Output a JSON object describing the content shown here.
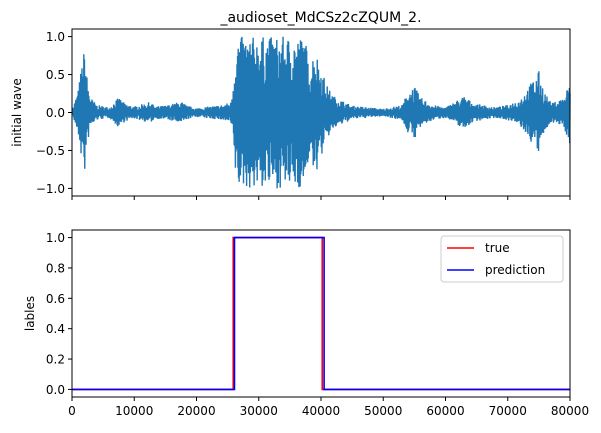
{
  "chart_data": [
    {
      "type": "line",
      "title": "_audioset_MdCSz2cZQUM_2.",
      "xlabel": "",
      "ylabel": "initial wave",
      "xlim": [
        0,
        80000
      ],
      "ylim": [
        -1.1,
        1.1
      ],
      "yticks": [
        -1.0,
        -0.5,
        0.0,
        0.5,
        1.0
      ],
      "ytick_labels": [
        "−1.0",
        "−0.5",
        "0.0",
        "0.5",
        "1.0"
      ],
      "xticks": [
        0,
        10000,
        20000,
        30000,
        40000,
        50000,
        60000,
        70000,
        80000
      ],
      "xtick_labels_visible": false,
      "series": [
        {
          "color": "#1f77b4",
          "envelope": [
            [
              0,
              0.02
            ],
            [
              1000,
              0.3
            ],
            [
              1500,
              0.6
            ],
            [
              2000,
              0.85
            ],
            [
              2500,
              0.4
            ],
            [
              3000,
              0.2
            ],
            [
              4000,
              0.1
            ],
            [
              6000,
              0.07
            ],
            [
              7500,
              0.2
            ],
            [
              8500,
              0.12
            ],
            [
              10000,
              0.08
            ],
            [
              12500,
              0.14
            ],
            [
              13500,
              0.08
            ],
            [
              15500,
              0.1
            ],
            [
              17500,
              0.15
            ],
            [
              18500,
              0.09
            ],
            [
              20000,
              0.06
            ],
            [
              22000,
              0.08
            ],
            [
              24000,
              0.1
            ],
            [
              25500,
              0.14
            ],
            [
              26000,
              0.5
            ],
            [
              26400,
              1.0
            ],
            [
              30000,
              1.0
            ],
            [
              35000,
              1.0
            ],
            [
              37500,
              1.0
            ],
            [
              38000,
              0.6
            ],
            [
              39000,
              0.85
            ],
            [
              40000,
              0.6
            ],
            [
              41000,
              0.35
            ],
            [
              42000,
              0.22
            ],
            [
              45000,
              0.09
            ],
            [
              50000,
              0.05
            ],
            [
              53000,
              0.1
            ],
            [
              54000,
              0.28
            ],
            [
              55000,
              0.35
            ],
            [
              56000,
              0.2
            ],
            [
              58000,
              0.1
            ],
            [
              60000,
              0.07
            ],
            [
              63000,
              0.22
            ],
            [
              64500,
              0.12
            ],
            [
              66000,
              0.1
            ],
            [
              68000,
              0.07
            ],
            [
              70000,
              0.1
            ],
            [
              72000,
              0.18
            ],
            [
              75000,
              0.55
            ],
            [
              75800,
              0.3
            ],
            [
              77000,
              0.12
            ],
            [
              79000,
              0.2
            ],
            [
              80000,
              0.42
            ]
          ]
        }
      ]
    },
    {
      "type": "line",
      "title": "",
      "xlabel": "",
      "ylabel": "lables",
      "xlim": [
        0,
        80000
      ],
      "ylim": [
        -0.05,
        1.05
      ],
      "yticks": [
        0.0,
        0.2,
        0.4,
        0.6,
        0.8,
        1.0
      ],
      "ytick_labels": [
        "0.0",
        "0.2",
        "0.4",
        "0.6",
        "0.8",
        "1.0"
      ],
      "xticks": [
        0,
        10000,
        20000,
        30000,
        40000,
        50000,
        60000,
        70000,
        80000
      ],
      "xtick_labels": [
        "0",
        "10000",
        "20000",
        "30000",
        "40000",
        "50000",
        "60000",
        "70000",
        "80000"
      ],
      "legend_position": "top-right",
      "series": [
        {
          "name": "true",
          "color": "#ff0000",
          "x": [
            0,
            25900,
            25900,
            40200,
            40200,
            80000
          ],
          "y": [
            0,
            0,
            1,
            1,
            0,
            0
          ]
        },
        {
          "name": "prediction",
          "color": "#0000ff",
          "x": [
            0,
            26100,
            26100,
            40500,
            40500,
            80000
          ],
          "y": [
            0,
            0,
            1,
            1,
            0,
            0
          ]
        }
      ]
    }
  ]
}
